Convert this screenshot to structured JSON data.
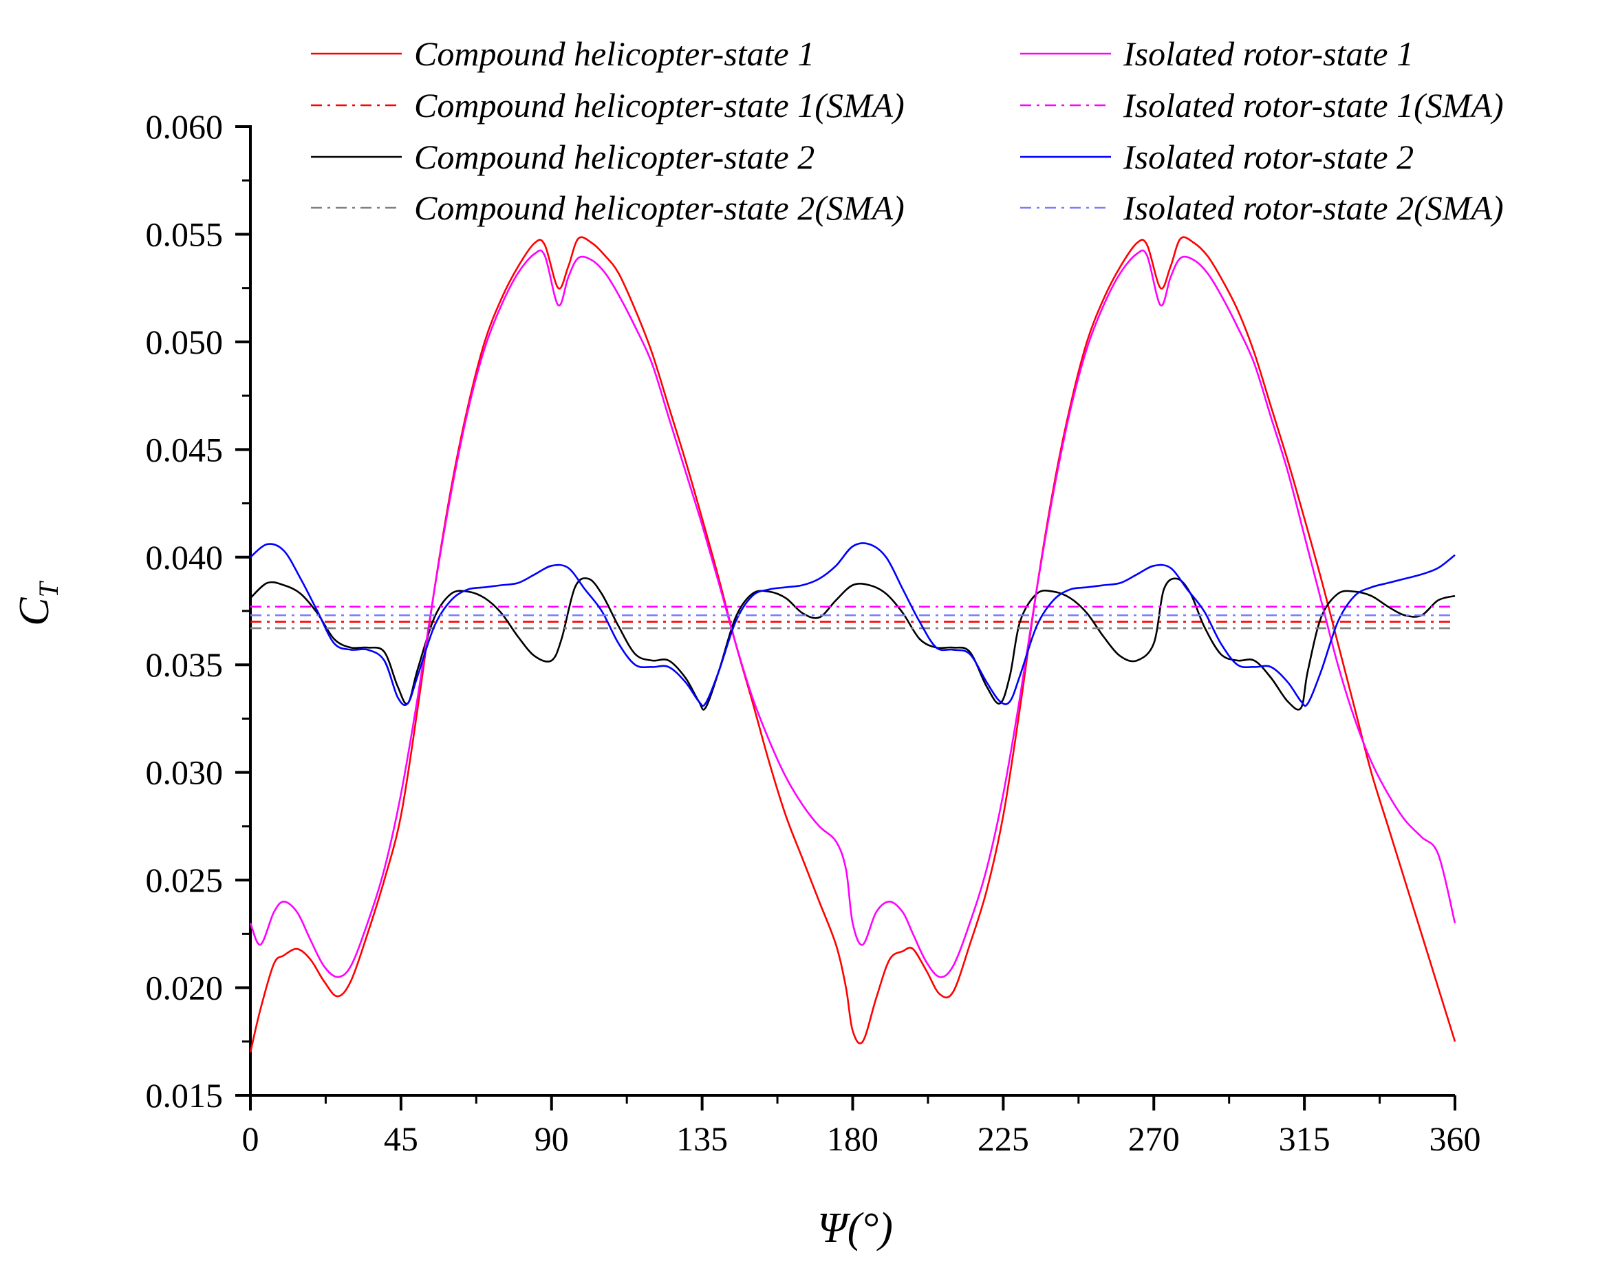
{
  "chart_data": {
    "type": "line",
    "xlabel": "Ψ(°)",
    "ylabel": "C",
    "ylabel_sub": "T",
    "xlim": [
      0,
      360
    ],
    "ylim": [
      0.015,
      0.06
    ],
    "xticks": [
      0,
      45,
      90,
      135,
      180,
      225,
      270,
      315,
      360
    ],
    "yticks": [
      0.015,
      0.02,
      0.025,
      0.03,
      0.035,
      0.04,
      0.045,
      0.05,
      0.055,
      0.06
    ],
    "xtick_labels": [
      "0",
      "45",
      "90",
      "135",
      "180",
      "225",
      "270",
      "315",
      "360"
    ],
    "ytick_labels": [
      "0.015",
      "0.020",
      "0.025",
      "0.030",
      "0.035",
      "0.040",
      "0.045",
      "0.050",
      "0.055",
      "0.060"
    ],
    "grid": false,
    "legend_position": "top",
    "series": [
      {
        "name": "Compound helicopter-state 1",
        "color": "#ff0000",
        "style": "solid",
        "x": [
          0,
          3,
          7,
          10,
          14,
          18,
          22,
          26,
          30,
          35,
          40,
          45,
          50,
          55,
          60,
          65,
          70,
          75,
          80,
          85,
          88,
          92,
          95,
          98,
          102,
          106,
          110,
          115,
          120,
          125,
          130,
          135,
          140,
          145,
          150,
          155,
          160,
          165,
          170,
          175,
          178,
          180,
          183,
          187,
          191,
          195,
          198,
          202,
          206,
          210,
          215,
          220,
          225,
          230,
          235,
          240,
          245,
          250,
          255,
          260,
          265,
          268,
          272,
          275,
          278,
          282,
          286,
          290,
          295,
          300,
          305,
          310,
          315,
          320,
          325,
          330,
          335,
          340,
          345,
          350,
          355,
          360
        ],
        "values": [
          0.017,
          0.019,
          0.0211,
          0.0215,
          0.0218,
          0.0213,
          0.0203,
          0.0196,
          0.0203,
          0.0225,
          0.025,
          0.028,
          0.033,
          0.0385,
          0.0432,
          0.047,
          0.05,
          0.052,
          0.0535,
          0.0546,
          0.0545,
          0.0525,
          0.0535,
          0.0548,
          0.0546,
          0.054,
          0.0532,
          0.0515,
          0.0495,
          0.047,
          0.0445,
          0.0418,
          0.039,
          0.036,
          0.0333,
          0.0305,
          0.028,
          0.026,
          0.024,
          0.022,
          0.02,
          0.018,
          0.0175,
          0.0195,
          0.0213,
          0.0217,
          0.0218,
          0.0208,
          0.0197,
          0.0198,
          0.022,
          0.0245,
          0.028,
          0.033,
          0.0385,
          0.0432,
          0.047,
          0.05,
          0.052,
          0.0535,
          0.0546,
          0.0545,
          0.0525,
          0.0535,
          0.0548,
          0.0546,
          0.054,
          0.053,
          0.0515,
          0.0495,
          0.047,
          0.0445,
          0.0418,
          0.039,
          0.036,
          0.033,
          0.03,
          0.0275,
          0.025,
          0.0225,
          0.02,
          0.0175
        ]
      },
      {
        "name": "Compound helicopter-state 1(SMA)",
        "color": "#ff0000",
        "style": "dashdot",
        "x": [
          0,
          360
        ],
        "values": [
          0.037,
          0.037
        ]
      },
      {
        "name": "Compound helicopter-state 2",
        "color": "#000000",
        "style": "solid",
        "x": [
          0,
          5,
          10,
          15,
          20,
          25,
          30,
          35,
          40,
          44,
          47,
          50,
          55,
          60,
          65,
          70,
          75,
          80,
          85,
          90,
          93,
          97,
          101,
          105,
          110,
          115,
          120,
          125,
          130,
          134,
          136,
          140,
          145,
          150,
          155,
          160,
          165,
          170,
          175,
          180,
          185,
          190,
          195,
          200,
          205,
          210,
          215,
          220,
          224,
          227,
          230,
          235,
          240,
          245,
          250,
          255,
          260,
          265,
          270,
          273,
          277,
          281,
          285,
          290,
          295,
          300,
          305,
          310,
          314,
          316,
          320,
          325,
          330,
          335,
          340,
          345,
          350,
          355,
          360
        ],
        "values": [
          0.0381,
          0.0388,
          0.0387,
          0.0383,
          0.0374,
          0.0362,
          0.0358,
          0.0358,
          0.0356,
          0.034,
          0.0332,
          0.0348,
          0.0372,
          0.0383,
          0.0384,
          0.0381,
          0.0374,
          0.0363,
          0.0354,
          0.0352,
          0.0362,
          0.0386,
          0.039,
          0.0383,
          0.0368,
          0.0355,
          0.0352,
          0.0352,
          0.0344,
          0.0333,
          0.033,
          0.0347,
          0.0372,
          0.0383,
          0.0384,
          0.0381,
          0.0374,
          0.0372,
          0.038,
          0.0387,
          0.0387,
          0.0383,
          0.0374,
          0.0362,
          0.0358,
          0.0358,
          0.0356,
          0.034,
          0.0332,
          0.0345,
          0.037,
          0.0383,
          0.0384,
          0.0381,
          0.0374,
          0.0363,
          0.0354,
          0.0352,
          0.036,
          0.0385,
          0.039,
          0.0383,
          0.0368,
          0.0355,
          0.0352,
          0.0352,
          0.0344,
          0.0333,
          0.033,
          0.0347,
          0.0372,
          0.0383,
          0.0384,
          0.0382,
          0.0377,
          0.0373,
          0.0373,
          0.038,
          0.0382
        ]
      },
      {
        "name": "Compound helicopter-state 2(SMA)",
        "color": "#808080",
        "style": "dashdot",
        "x": [
          0,
          360
        ],
        "values": [
          0.0367,
          0.0367
        ]
      },
      {
        "name": "Isolated rotor-state 1",
        "color": "#ff00ff",
        "style": "solid",
        "x": [
          0,
          3,
          7,
          10,
          14,
          18,
          22,
          26,
          30,
          35,
          40,
          45,
          50,
          55,
          60,
          65,
          70,
          75,
          80,
          85,
          88,
          92,
          95,
          98,
          102,
          106,
          110,
          115,
          120,
          125,
          130,
          135,
          140,
          145,
          150,
          155,
          160,
          165,
          170,
          175,
          178,
          180,
          183,
          187,
          191,
          195,
          198,
          202,
          206,
          210,
          215,
          220,
          225,
          230,
          235,
          240,
          245,
          250,
          255,
          260,
          265,
          268,
          272,
          275,
          278,
          282,
          286,
          290,
          295,
          300,
          305,
          310,
          315,
          320,
          325,
          330,
          335,
          340,
          345,
          350,
          355,
          360
        ],
        "values": [
          0.023,
          0.022,
          0.0235,
          0.024,
          0.0235,
          0.0222,
          0.021,
          0.0205,
          0.021,
          0.023,
          0.0255,
          0.029,
          0.0335,
          0.0385,
          0.043,
          0.0468,
          0.0497,
          0.0517,
          0.0532,
          0.0541,
          0.054,
          0.0517,
          0.053,
          0.0539,
          0.0538,
          0.0532,
          0.0522,
          0.0507,
          0.049,
          0.0465,
          0.044,
          0.0415,
          0.0388,
          0.036,
          0.0335,
          0.0315,
          0.0298,
          0.0285,
          0.0275,
          0.0268,
          0.0255,
          0.023,
          0.022,
          0.0235,
          0.024,
          0.0235,
          0.0225,
          0.0212,
          0.0205,
          0.021,
          0.023,
          0.0255,
          0.029,
          0.0335,
          0.0385,
          0.043,
          0.0468,
          0.0497,
          0.0517,
          0.0532,
          0.0541,
          0.054,
          0.0517,
          0.053,
          0.0539,
          0.0538,
          0.0532,
          0.0522,
          0.0507,
          0.049,
          0.0465,
          0.044,
          0.041,
          0.038,
          0.035,
          0.0325,
          0.0305,
          0.029,
          0.0278,
          0.027,
          0.0262,
          0.023
        ]
      },
      {
        "name": "Isolated rotor-state 1(SMA)",
        "color": "#ff00ff",
        "style": "dashdot",
        "x": [
          0,
          360
        ],
        "values": [
          0.0377,
          0.0377
        ]
      },
      {
        "name": "Isolated rotor-state 2",
        "color": "#0000ff",
        "style": "solid",
        "x": [
          0,
          5,
          10,
          15,
          20,
          25,
          30,
          35,
          40,
          44,
          47,
          50,
          55,
          60,
          65,
          70,
          75,
          80,
          85,
          90,
          95,
          100,
          105,
          110,
          115,
          120,
          125,
          130,
          134,
          136,
          140,
          145,
          150,
          155,
          160,
          165,
          170,
          175,
          180,
          185,
          190,
          195,
          200,
          205,
          210,
          215,
          220,
          224,
          227,
          230,
          235,
          240,
          245,
          250,
          255,
          260,
          265,
          270,
          275,
          280,
          285,
          290,
          295,
          300,
          305,
          310,
          314,
          316,
          320,
          325,
          330,
          335,
          340,
          345,
          350,
          355,
          360
        ],
        "values": [
          0.04,
          0.0406,
          0.0403,
          0.039,
          0.0375,
          0.036,
          0.0357,
          0.0357,
          0.0352,
          0.0335,
          0.0332,
          0.0345,
          0.0368,
          0.038,
          0.0385,
          0.0386,
          0.0387,
          0.0388,
          0.0392,
          0.0396,
          0.0395,
          0.0385,
          0.0375,
          0.036,
          0.035,
          0.0349,
          0.0349,
          0.0342,
          0.0333,
          0.0332,
          0.0347,
          0.037,
          0.0382,
          0.0385,
          0.0386,
          0.0387,
          0.039,
          0.0396,
          0.0405,
          0.0406,
          0.04,
          0.0385,
          0.037,
          0.0358,
          0.0357,
          0.0355,
          0.0342,
          0.0333,
          0.0333,
          0.0345,
          0.0368,
          0.038,
          0.0385,
          0.0386,
          0.0387,
          0.0388,
          0.0392,
          0.0396,
          0.0395,
          0.0385,
          0.0375,
          0.036,
          0.035,
          0.0349,
          0.0349,
          0.0342,
          0.0333,
          0.0332,
          0.0347,
          0.037,
          0.0382,
          0.0386,
          0.0388,
          0.039,
          0.0392,
          0.0395,
          0.0401
        ]
      },
      {
        "name": "Isolated rotor-state 2(SMA)",
        "color": "#7b7bff",
        "style": "dashdot",
        "x": [
          0,
          360
        ],
        "values": [
          0.0373,
          0.0373
        ]
      }
    ],
    "legend": [
      {
        "label": "Compound helicopter-state 1",
        "color": "#ff0000",
        "style": "solid"
      },
      {
        "label": "Isolated rotor-state 1",
        "color": "#ff00ff",
        "style": "solid"
      },
      {
        "label": "Compound helicopter-state 1(SMA)",
        "color": "#ff0000",
        "style": "dashdot"
      },
      {
        "label": "Isolated rotor-state 1(SMA)",
        "color": "#ff00ff",
        "style": "dashdot"
      },
      {
        "label": "Compound helicopter-state 2",
        "color": "#000000",
        "style": "solid"
      },
      {
        "label": "Isolated rotor-state 2",
        "color": "#0000ff",
        "style": "solid"
      },
      {
        "label": "Compound helicopter-state 2(SMA)",
        "color": "#808080",
        "style": "dashdot"
      },
      {
        "label": "Isolated rotor-state 2(SMA)",
        "color": "#7b7bff",
        "style": "dashdot"
      }
    ]
  }
}
